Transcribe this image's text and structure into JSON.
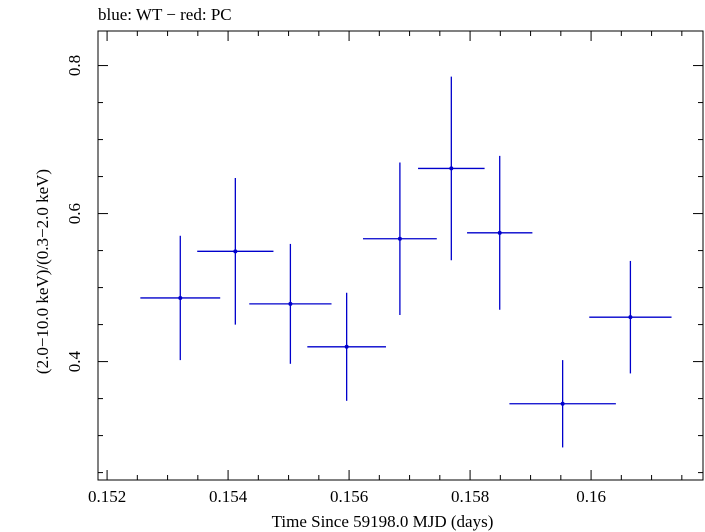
{
  "chart_data": {
    "type": "scatter",
    "title": "blue: WT − red: PC",
    "xlabel": "Time Since 59198.0 MJD (days)",
    "ylabel": "(2.0−10.0 keV)/(0.3−2.0 keV)",
    "xlim": [
      0.15185,
      0.16185
    ],
    "ylim": [
      0.24,
      0.8467
    ],
    "xticks": [
      {
        "value": 0.152,
        "label": "0.152"
      },
      {
        "value": 0.154,
        "label": "0.154"
      },
      {
        "value": 0.156,
        "label": "0.156"
      },
      {
        "value": 0.158,
        "label": "0.158"
      },
      {
        "value": 0.16,
        "label": "0.16"
      }
    ],
    "yticks": [
      {
        "value": 0.4,
        "label": "0.4"
      },
      {
        "value": 0.6,
        "label": "0.6"
      },
      {
        "value": 0.8,
        "label": "0.8"
      }
    ],
    "grid": false,
    "series": [
      {
        "color": "#0000cc",
        "points": [
          {
            "x": 0.15321,
            "xerr": 0.00066,
            "y": 0.486,
            "yerr": 0.084
          },
          {
            "x": 0.15412,
            "xerr": 0.00063,
            "y": 0.549,
            "yerr": 0.099
          },
          {
            "x": 0.15503,
            "xerr": 0.00068,
            "y": 0.478,
            "yerr": 0.081
          },
          {
            "x": 0.15596,
            "xerr": 0.00065,
            "y": 0.42,
            "yerr": 0.073
          },
          {
            "x": 0.15684,
            "xerr": 0.00061,
            "y": 0.566,
            "yerr": 0.103
          },
          {
            "x": 0.15769,
            "xerr": 0.00055,
            "y": 0.661,
            "yerr": 0.124
          },
          {
            "x": 0.15849,
            "xerr": 0.00054,
            "y": 0.574,
            "yerr": 0.104
          },
          {
            "x": 0.15953,
            "xerr": 0.00088,
            "y": 0.343,
            "yerr": 0.059
          },
          {
            "x": 0.16065,
            "xerr": 0.00068,
            "y": 0.46,
            "yerr": 0.076
          }
        ]
      }
    ]
  }
}
